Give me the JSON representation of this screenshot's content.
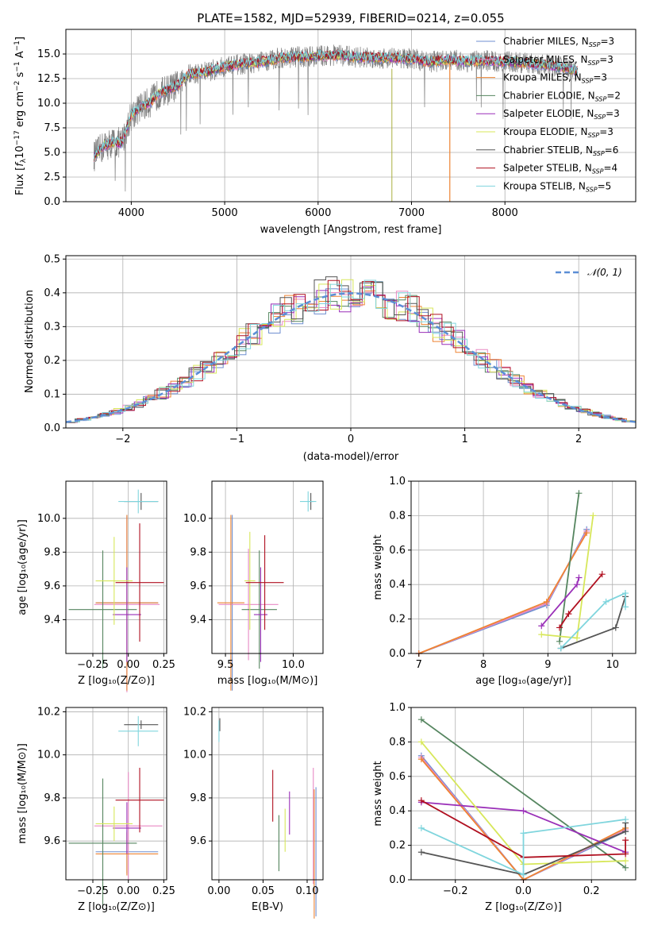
{
  "colors": {
    "c_miles": "#6f8fd0",
    "s_miles": "#e889c4",
    "k_miles": "#ee8433",
    "c_elodie": "#55855f",
    "s_elodie": "#9a2fb8",
    "k_elodie": "#d7e75a",
    "c_stelib": "#555555",
    "s_stelib": "#b01020",
    "k_stelib": "#7fd5dd",
    "normal": "#5b8ed6",
    "data": "#7f7f7f",
    "grid": "#b0b0b0"
  },
  "chart_data": [
    {
      "id": "spectrum",
      "type": "line",
      "title": "PLATE=1582, MJD=52939, FIBERID=0214, z=0.055",
      "xlabel": "wavelength [Angstrom, rest frame]",
      "ylabel": "Flux [fλ10⁻¹⁷ erg cm⁻² s⁻¹ A⁻¹]",
      "xlim": [
        3300,
        9400
      ],
      "ylim": [
        0,
        17.5
      ],
      "xticks": [
        "4000",
        "5000",
        "6000",
        "7000",
        "8000"
      ],
      "yticks": [
        "0.0",
        "2.5",
        "5.0",
        "7.5",
        "10.0",
        "12.5",
        "15.0"
      ],
      "continuum": [
        [
          3600,
          4.6
        ],
        [
          3700,
          5.6
        ],
        [
          3800,
          6.0
        ],
        [
          3900,
          6.0
        ],
        [
          4000,
          8.8
        ],
        [
          4100,
          9.6
        ],
        [
          4200,
          10.1
        ],
        [
          4300,
          11.0
        ],
        [
          4500,
          11.8
        ],
        [
          4600,
          12.9
        ],
        [
          4800,
          13.2
        ],
        [
          5000,
          13.7
        ],
        [
          5200,
          14.0
        ],
        [
          5400,
          14.2
        ],
        [
          5600,
          14.6
        ],
        [
          5800,
          14.7
        ],
        [
          6000,
          14.8
        ],
        [
          6200,
          14.9
        ],
        [
          6400,
          14.7
        ],
        [
          6600,
          14.6
        ],
        [
          6800,
          14.6
        ],
        [
          7000,
          14.5
        ],
        [
          7200,
          14.2
        ],
        [
          7400,
          14.4
        ],
        [
          7600,
          14.2
        ],
        [
          7800,
          14.3
        ],
        [
          8000,
          14.2
        ],
        [
          8200,
          14.1
        ],
        [
          8400,
          13.9
        ],
        [
          8600,
          13.7
        ],
        [
          8780,
          13.2
        ]
      ],
      "legend": [
        {
          "name": "Chabrier MILES, N",
          "sub": "SSP",
          "value": "=3",
          "color": "#6f8fd0"
        },
        {
          "name": "Salpeter MILES, N",
          "sub": "SSP",
          "value": "=3",
          "color": "#e889c4"
        },
        {
          "name": "Kroupa MILES, N",
          "sub": "SSP",
          "value": "=3",
          "color": "#ee8433"
        },
        {
          "name": "Chabrier ELODIE, N",
          "sub": "SSP",
          "value": "=2",
          "color": "#55855f"
        },
        {
          "name": "Salpeter ELODIE, N",
          "sub": "SSP",
          "value": "=3",
          "color": "#9a2fb8"
        },
        {
          "name": "Kroupa ELODIE, N",
          "sub": "SSP",
          "value": "=3",
          "color": "#d7e75a"
        },
        {
          "name": "Chabrier STELIB, N",
          "sub": "SSP",
          "value": "=6",
          "color": "#555555"
        },
        {
          "name": "Salpeter STELIB, N",
          "sub": "SSP",
          "value": "=4",
          "color": "#b01020"
        },
        {
          "name": "Kroupa STELIB, N",
          "sub": "SSP",
          "value": "=5",
          "color": "#7fd5dd"
        }
      ]
    },
    {
      "id": "residuals",
      "type": "line",
      "xlabel": "(data-model)/error",
      "ylabel": "Normed distribution",
      "xlim": [
        -2.5,
        2.5
      ],
      "ylim": [
        0,
        0.51
      ],
      "xticks": [
        "−2",
        "−1",
        "0",
        "1",
        "2"
      ],
      "yticks": [
        "0.0",
        "0.1",
        "0.2",
        "0.3",
        "0.4",
        "0.5"
      ],
      "legend_label": "𝒩(0, 1)",
      "bin_width": 0.1
    },
    {
      "id": "age_vs_Z",
      "type": "scatter",
      "xlabel": "Z [log₁₀(Z/Z⊙)]",
      "ylabel": "age  [log₁₀(age/yr)]",
      "xlim": [
        -0.44,
        0.27
      ],
      "ylim": [
        9.2,
        10.22
      ],
      "xticks": [
        "−0.25",
        "0.00",
        "0.25"
      ],
      "yticks": [
        "9.4",
        "9.6",
        "9.8",
        "10.0"
      ],
      "points": [
        {
          "s": "c_miles",
          "x": -0.01,
          "y": 9.5,
          "xe": 0.22,
          "ye": 0.52
        },
        {
          "s": "s_miles",
          "x": -0.01,
          "y": 9.49,
          "xe": 0.23,
          "ye": 0.52
        },
        {
          "s": "k_miles",
          "x": -0.01,
          "y": 9.5,
          "xe": 0.22,
          "ye": 0.52
        },
        {
          "s": "c_elodie",
          "x": -0.18,
          "y": 9.46,
          "xe": 0.24,
          "ye": 0.35
        },
        {
          "s": "s_elodie",
          "x": -0.01,
          "y": 9.43,
          "xe": 0.1,
          "ye": 0.28
        },
        {
          "s": "k_elodie",
          "x": -0.1,
          "y": 9.63,
          "xe": 0.13,
          "ye": 0.26
        },
        {
          "s": "c_stelib",
          "x": 0.09,
          "y": 10.1,
          "xe": 0.12,
          "ye": 0.05
        },
        {
          "s": "s_stelib",
          "x": 0.08,
          "y": 9.62,
          "xe": 0.17,
          "ye": 0.35
        },
        {
          "s": "k_stelib",
          "x": 0.07,
          "y": 10.1,
          "xe": 0.14,
          "ye": 0.07
        }
      ]
    },
    {
      "id": "age_vs_mass",
      "type": "scatter",
      "xlabel": "mass [log₁₀(M/M⊙)]",
      "ylabel": "",
      "xlim": [
        9.4,
        10.22
      ],
      "ylim": [
        9.2,
        10.22
      ],
      "xticks": [
        "9.5",
        "10.0"
      ],
      "yticks": [
        "9.4",
        "9.6",
        "9.8",
        "10.0"
      ],
      "points": [
        {
          "s": "c_miles",
          "x": 9.55,
          "y": 9.5,
          "xe": 0.0,
          "ye": 0.52
        },
        {
          "s": "s_miles",
          "x": 9.67,
          "y": 9.49,
          "xe": 0.22,
          "ye": 0.33
        },
        {
          "s": "k_miles",
          "x": 9.54,
          "y": 9.5,
          "xe": 0.1,
          "ye": 0.52
        },
        {
          "s": "c_elodie",
          "x": 9.75,
          "y": 9.46,
          "xe": 0.13,
          "ye": 0.35
        },
        {
          "s": "s_elodie",
          "x": 9.76,
          "y": 9.43,
          "xe": 0.05,
          "ye": 0.28
        },
        {
          "s": "k_elodie",
          "x": 9.68,
          "y": 9.63,
          "xe": 0.04,
          "ye": 0.29
        },
        {
          "s": "c_stelib",
          "x": 10.13,
          "y": 10.1,
          "xe": 0.02,
          "ye": 0.05
        },
        {
          "s": "s_stelib",
          "x": 9.79,
          "y": 9.62,
          "xe": 0.14,
          "ye": 0.28
        },
        {
          "s": "k_stelib",
          "x": 10.11,
          "y": 10.1,
          "xe": 0.06,
          "ye": 0.06
        }
      ]
    },
    {
      "id": "weight_vs_age",
      "type": "line",
      "xlabel": "age  [log₁₀(age/yr)]",
      "ylabel": "mass weight",
      "xlim": [
        6.88,
        10.36
      ],
      "ylim": [
        0,
        1.0
      ],
      "xticks": [
        "7",
        "8",
        "9",
        "10"
      ],
      "yticks": [
        "0.0",
        "0.2",
        "0.4",
        "0.6",
        "0.8",
        "1.0"
      ],
      "series": [
        {
          "s": "c_miles",
          "x": [
            7.0,
            8.98,
            9.6
          ],
          "y": [
            0.0,
            0.28,
            0.72
          ]
        },
        {
          "s": "s_miles",
          "x": [
            7.0,
            8.98,
            9.6
          ],
          "y": [
            0.0,
            0.29,
            0.71
          ]
        },
        {
          "s": "k_miles",
          "x": [
            7.0,
            8.98,
            9.6
          ],
          "y": [
            0.0,
            0.3,
            0.7
          ]
        },
        {
          "s": "c_elodie",
          "x": [
            9.18,
            9.48
          ],
          "y": [
            0.07,
            0.93
          ]
        },
        {
          "s": "s_elodie",
          "x": [
            8.9,
            9.45,
            9.48
          ],
          "y": [
            0.16,
            0.4,
            0.44
          ]
        },
        {
          "s": "k_elodie",
          "x": [
            8.9,
            9.45,
            9.7
          ],
          "y": [
            0.11,
            0.09,
            0.8
          ]
        },
        {
          "s": "c_stelib",
          "x": [
            9.2,
            10.05,
            10.2
          ],
          "y": [
            0.03,
            0.15,
            0.33
          ]
        },
        {
          "s": "s_stelib",
          "x": [
            9.18,
            9.32,
            9.84
          ],
          "y": [
            0.15,
            0.23,
            0.46
          ]
        },
        {
          "s": "k_stelib",
          "x": [
            9.2,
            9.9,
            10.2,
            10.2
          ],
          "y": [
            0.03,
            0.3,
            0.35,
            0.27
          ]
        }
      ]
    },
    {
      "id": "mass_vs_Z",
      "type": "scatter",
      "xlabel": "Z [log₁₀(Z/Z⊙)]",
      "ylabel": "mass [log₁₀(M/M⊙)]",
      "xlim": [
        -0.44,
        0.27
      ],
      "ylim": [
        9.42,
        10.22
      ],
      "xticks": [
        "−0.25",
        "0.00",
        "0.25"
      ],
      "yticks": [
        "9.6",
        "9.8",
        "10.0",
        "10.2"
      ],
      "points": [
        {
          "s": "c_miles",
          "x": -0.01,
          "y": 9.55,
          "xe": 0.22,
          "ye": 0.1
        },
        {
          "s": "s_miles",
          "x": 0.0,
          "y": 9.67,
          "xe": 0.24,
          "ye": 0.25
        },
        {
          "s": "k_miles",
          "x": -0.01,
          "y": 9.54,
          "xe": 0.22,
          "ye": 0.1
        },
        {
          "s": "c_elodie",
          "x": -0.18,
          "y": 9.59,
          "xe": 0.24,
          "ye": 0.3
        },
        {
          "s": "s_elodie",
          "x": -0.01,
          "y": 9.66,
          "xe": 0.1,
          "ye": 0.12
        },
        {
          "s": "k_elodie",
          "x": -0.1,
          "y": 9.68,
          "xe": 0.13,
          "ye": 0.08
        },
        {
          "s": "c_stelib",
          "x": 0.09,
          "y": 10.14,
          "xe": 0.12,
          "ye": 0.02
        },
        {
          "s": "s_stelib",
          "x": 0.08,
          "y": 9.79,
          "xe": 0.17,
          "ye": 0.15
        },
        {
          "s": "k_stelib",
          "x": 0.07,
          "y": 10.11,
          "xe": 0.14,
          "ye": 0.07
        }
      ]
    },
    {
      "id": "mass_vs_ebv",
      "type": "scatter",
      "xlabel": "E(B-V)",
      "ylabel": "",
      "xlim": [
        -0.008,
        0.118
      ],
      "ylim": [
        9.42,
        10.22
      ],
      "xticks": [
        "0.00",
        "0.05",
        "0.10"
      ],
      "yticks": [
        "9.6",
        "9.8",
        "10.0",
        "10.2"
      ],
      "points": [
        {
          "s": "c_miles",
          "x": 0.11,
          "y": 9.55,
          "ye": 0.3
        },
        {
          "s": "s_miles",
          "x": 0.107,
          "y": 9.67,
          "ye": 0.27
        },
        {
          "s": "k_miles",
          "x": 0.108,
          "y": 9.54,
          "ye": 0.3
        },
        {
          "s": "c_elodie",
          "x": 0.068,
          "y": 9.59,
          "ye": 0.13
        },
        {
          "s": "s_elodie",
          "x": 0.08,
          "y": 9.73,
          "ye": 0.1
        },
        {
          "s": "k_elodie",
          "x": 0.075,
          "y": 9.65,
          "ye": 0.1
        },
        {
          "s": "c_stelib",
          "x": 0.001,
          "y": 10.14,
          "ye": 0.03
        },
        {
          "s": "s_stelib",
          "x": 0.061,
          "y": 9.81,
          "ye": 0.12
        },
        {
          "s": "k_stelib",
          "x": 0.0,
          "y": 10.11,
          "ye": 0.05
        }
      ]
    },
    {
      "id": "weight_vs_Z",
      "type": "line",
      "xlabel": "Z [log₁₀(Z/Z⊙)]",
      "ylabel": "mass weight",
      "xlim": [
        -0.33,
        0.33
      ],
      "ylim": [
        0,
        1.0
      ],
      "xticks": [
        "−0.2",
        "0.0",
        "0.2"
      ],
      "yticks": [
        "0.0",
        "0.2",
        "0.4",
        "0.6",
        "0.8",
        "1.0"
      ],
      "series": [
        {
          "s": "c_miles",
          "x": [
            -0.3,
            0.0,
            0.3
          ],
          "y": [
            0.72,
            0.0,
            0.28
          ]
        },
        {
          "s": "s_miles",
          "x": [
            -0.3,
            0.0,
            0.3
          ],
          "y": [
            0.71,
            0.0,
            0.29
          ]
        },
        {
          "s": "k_miles",
          "x": [
            -0.3,
            0.0,
            0.3
          ],
          "y": [
            0.7,
            0.0,
            0.3
          ]
        },
        {
          "s": "c_elodie",
          "x": [
            -0.3,
            0.3
          ],
          "y": [
            0.93,
            0.07
          ]
        },
        {
          "s": "s_elodie",
          "x": [
            -0.3,
            0.0,
            0.3
          ],
          "y": [
            0.45,
            0.4,
            0.16
          ]
        },
        {
          "s": "k_elodie",
          "x": [
            -0.3,
            0.0,
            0.3
          ],
          "y": [
            0.8,
            0.09,
            0.11
          ]
        },
        {
          "s": "c_stelib",
          "x": [
            -0.3,
            0.0,
            0.3,
            0.3
          ],
          "y": [
            0.16,
            0.03,
            0.28,
            0.33
          ]
        },
        {
          "s": "s_stelib",
          "x": [
            -0.3,
            0.0,
            0.3,
            0.3
          ],
          "y": [
            0.46,
            0.13,
            0.15,
            0.23
          ]
        },
        {
          "s": "k_stelib",
          "x": [
            -0.3,
            0.0,
            0.0,
            0.3
          ],
          "y": [
            0.3,
            0.03,
            0.27,
            0.35
          ]
        }
      ]
    }
  ]
}
